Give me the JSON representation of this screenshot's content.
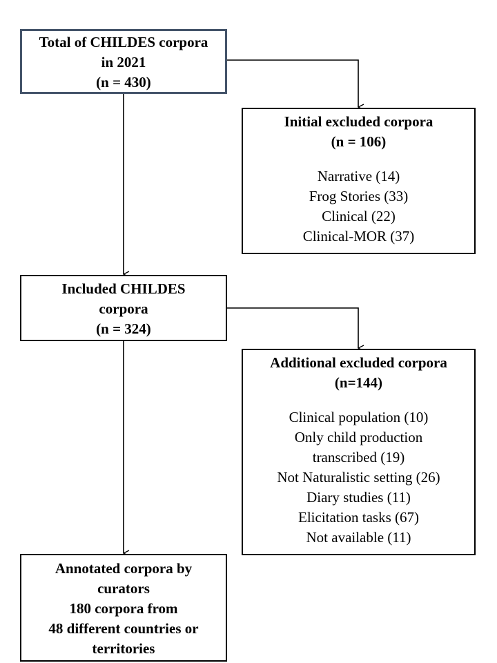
{
  "total_box": {
    "lines": [
      "Total of CHILDES corpora",
      "in 2021",
      "(n = 430)"
    ]
  },
  "initial_excluded": {
    "title": "Initial excluded corpora",
    "count": "(n = 106)",
    "items": [
      "Narrative (14)",
      "Frog Stories (33)",
      "Clinical (22)",
      "Clinical-MOR (37)"
    ]
  },
  "included_box": {
    "lines": [
      "Included CHILDES",
      "corpora",
      "(n = 324)"
    ]
  },
  "additional_excluded": {
    "title": "Additional excluded corpora",
    "count": "(n=144)",
    "items": [
      "Clinical population (10)",
      "Only child production",
      "transcribed (19)",
      "Not Naturalistic setting (26)",
      "Diary studies (11)",
      "Elicitation tasks (67)",
      "Not available (11)"
    ]
  },
  "annotated_box": {
    "lines": [
      "Annotated corpora by",
      "curators",
      "180 corpora from",
      "48 different countries or",
      "territories"
    ]
  }
}
